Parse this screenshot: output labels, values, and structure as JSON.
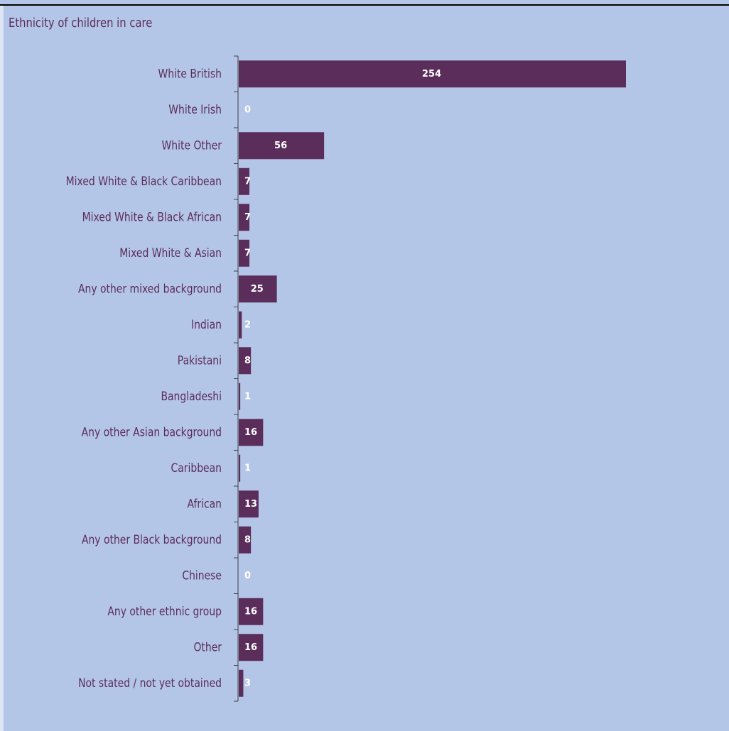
{
  "colors": {
    "background": "#b4c6e7",
    "bar": "#5b2d5b",
    "text": "#5b2d5b",
    "value_label": "#ffffff"
  },
  "chart_data": {
    "type": "bar",
    "orientation": "horizontal",
    "title": "Ethnicity of children in care",
    "xlabel": "",
    "ylabel": "",
    "xlim": [
      0,
      254
    ],
    "grid": false,
    "legend": "none",
    "categories": [
      "White British",
      "White Irish",
      "White Other",
      "Mixed White & Black Caribbean",
      "Mixed White & Black African",
      "Mixed White & Asian",
      "Any other mixed background",
      "Indian",
      "Pakistani",
      "Bangladeshi",
      "Any other Asian background",
      "Caribbean",
      "African",
      "Any other Black background",
      "Chinese",
      "Any other ethnic group",
      "Other",
      "Not stated / not yet obtained"
    ],
    "values": [
      254,
      0,
      56,
      7,
      7,
      7,
      25,
      2,
      8,
      1,
      16,
      1,
      13,
      8,
      0,
      16,
      16,
      3
    ]
  }
}
